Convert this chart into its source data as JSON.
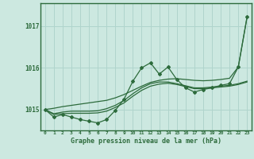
{
  "background_color": "#cce8e0",
  "grid_color": "#b0d4cc",
  "line_color": "#2d6b3c",
  "title": "Graphe pression niveau de la mer (hPa)",
  "xlabel_ticks": [
    0,
    1,
    2,
    3,
    4,
    5,
    6,
    7,
    8,
    9,
    10,
    11,
    12,
    13,
    14,
    15,
    16,
    17,
    18,
    19,
    20,
    21,
    22,
    23
  ],
  "ylim": [
    1014.5,
    1017.55
  ],
  "yticks": [
    1015,
    1016,
    1017
  ],
  "series": {
    "main": [
      1015.0,
      1014.82,
      1014.88,
      1014.82,
      1014.76,
      1014.72,
      1014.68,
      1014.76,
      1014.98,
      1015.25,
      1015.68,
      1016.0,
      1016.12,
      1015.85,
      1016.02,
      1015.72,
      1015.52,
      1015.42,
      1015.48,
      1015.52,
      1015.58,
      1015.62,
      1016.02,
      1017.22
    ],
    "smooth1": [
      1015.0,
      1014.9,
      1014.94,
      1014.96,
      1014.96,
      1014.96,
      1014.97,
      1015.02,
      1015.1,
      1015.22,
      1015.38,
      1015.52,
      1015.62,
      1015.66,
      1015.66,
      1015.62,
      1015.57,
      1015.52,
      1015.52,
      1015.54,
      1015.56,
      1015.58,
      1015.62,
      1015.68
    ],
    "smooth2": [
      1015.0,
      1014.88,
      1014.9,
      1014.91,
      1014.91,
      1014.91,
      1014.92,
      1014.96,
      1015.05,
      1015.16,
      1015.32,
      1015.46,
      1015.56,
      1015.61,
      1015.63,
      1015.6,
      1015.55,
      1015.5,
      1015.5,
      1015.52,
      1015.54,
      1015.56,
      1015.6,
      1015.66
    ],
    "trend": [
      1015.0,
      1015.03,
      1015.07,
      1015.1,
      1015.13,
      1015.16,
      1015.19,
      1015.22,
      1015.28,
      1015.36,
      1015.46,
      1015.56,
      1015.65,
      1015.7,
      1015.73,
      1015.74,
      1015.72,
      1015.7,
      1015.69,
      1015.7,
      1015.72,
      1015.75,
      1016.02,
      1017.22
    ]
  },
  "marker": "D",
  "marker_size": 2.0,
  "linewidth": 0.9
}
